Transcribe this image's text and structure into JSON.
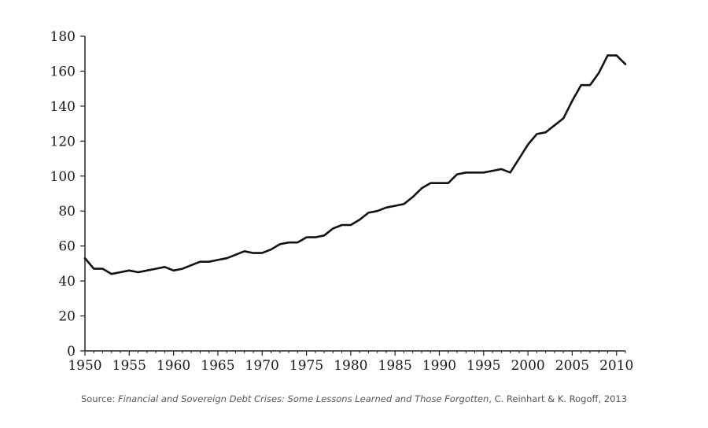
{
  "chart_data": {
    "type": "line",
    "title": "",
    "xlabel": "",
    "ylabel": "",
    "xlim": [
      1950,
      2011
    ],
    "ylim": [
      0,
      180
    ],
    "x_ticks": [
      1950,
      1955,
      1960,
      1965,
      1970,
      1975,
      1980,
      1985,
      1990,
      1995,
      2000,
      2005,
      2010
    ],
    "y_ticks": [
      0,
      20,
      40,
      60,
      80,
      100,
      120,
      140,
      160,
      180
    ],
    "grid": false,
    "legend": "none",
    "line_color": "#111111",
    "series": [
      {
        "x": [
          1950,
          1951,
          1952,
          1953,
          1954,
          1955,
          1956,
          1957,
          1958,
          1959,
          1960,
          1961,
          1962,
          1963,
          1964,
          1965,
          1966,
          1967,
          1968,
          1969,
          1970,
          1971,
          1972,
          1973,
          1974,
          1975,
          1976,
          1977,
          1978,
          1979,
          1980,
          1981,
          1982,
          1983,
          1984,
          1985,
          1986,
          1987,
          1988,
          1989,
          1990,
          1991,
          1992,
          1993,
          1994,
          1995,
          1996,
          1997,
          1998,
          1999,
          2000,
          2001,
          2002,
          2003,
          2004,
          2005,
          2006,
          2007,
          2008,
          2009,
          2010,
          2011
        ],
        "values": [
          53,
          47,
          47,
          44,
          45,
          46,
          45,
          46,
          47,
          48,
          46,
          47,
          49,
          51,
          51,
          52,
          53,
          55,
          57,
          56,
          56,
          58,
          61,
          62,
          62,
          65,
          65,
          66,
          70,
          72,
          72,
          75,
          79,
          80,
          82,
          83,
          84,
          88,
          93,
          96,
          96,
          96,
          101,
          102,
          102,
          102,
          103,
          104,
          102,
          110,
          118,
          124,
          125,
          129,
          133,
          143,
          152,
          152,
          159,
          169,
          169,
          164
        ]
      }
    ]
  },
  "source": {
    "prefix": "Source: ",
    "title": "Financial and Sovereign Debt Crises: Some Lessons Learned and Those Forgotten",
    "suffix": ", C. Reinhart & K.  Rogoff, 2013"
  }
}
